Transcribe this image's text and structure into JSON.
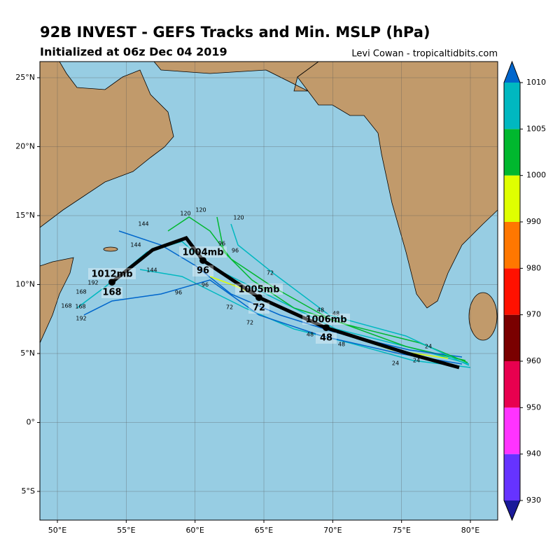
{
  "header": {
    "title": "92B INVEST - GEFS Tracks and Min. MSLP (hPa)",
    "subtitle": "Initialized at 06z Dec 04 2019",
    "credit": "Levi Cowan - tropicaltidbits.com"
  },
  "map": {
    "lon_ticks": [
      {
        "value": 50,
        "label": "50°E"
      },
      {
        "value": 55,
        "label": "55°E"
      },
      {
        "value": 60,
        "label": "60°E"
      },
      {
        "value": 65,
        "label": "65°E"
      },
      {
        "value": 70,
        "label": "70°E"
      },
      {
        "value": 75,
        "label": "75°E"
      },
      {
        "value": 80,
        "label": "80°E"
      }
    ],
    "lat_ticks": [
      {
        "value": 25,
        "label": "25°N"
      },
      {
        "value": 20,
        "label": "20°N"
      },
      {
        "value": 15,
        "label": "15°N"
      },
      {
        "value": 10,
        "label": "10°N"
      },
      {
        "value": 5,
        "label": "5°N"
      },
      {
        "value": 0,
        "label": "0°"
      },
      {
        "value": -5,
        "label": "5°S"
      }
    ],
    "mean_track_labels": [
      {
        "pressure": "1006mb",
        "hour": "48"
      },
      {
        "pressure": "1005mb",
        "hour": "72"
      },
      {
        "pressure": "1004mb",
        "hour": "96"
      },
      {
        "pressure": "1012mb",
        "hour": "168"
      }
    ],
    "member_labels": [
      "24",
      "24",
      "24",
      "48",
      "48",
      "48",
      "48",
      "72",
      "72",
      "72",
      "96",
      "96",
      "96",
      "96",
      "120",
      "120",
      "120",
      "144",
      "144",
      "144",
      "168",
      "168",
      "168",
      "192",
      "192"
    ]
  },
  "colorbar": {
    "ticks": [
      930,
      940,
      950,
      960,
      970,
      980,
      990,
      1000,
      1005,
      1010
    ],
    "colors": [
      "#6633ff",
      "#ff33ff",
      "#e8004f",
      "#7a0000",
      "#ff1100",
      "#ff7700",
      "#dfff00",
      "#00b82e",
      "#00b8c0"
    ],
    "extend_low": "#1a1a99",
    "extend_high": "#0066cc"
  }
}
